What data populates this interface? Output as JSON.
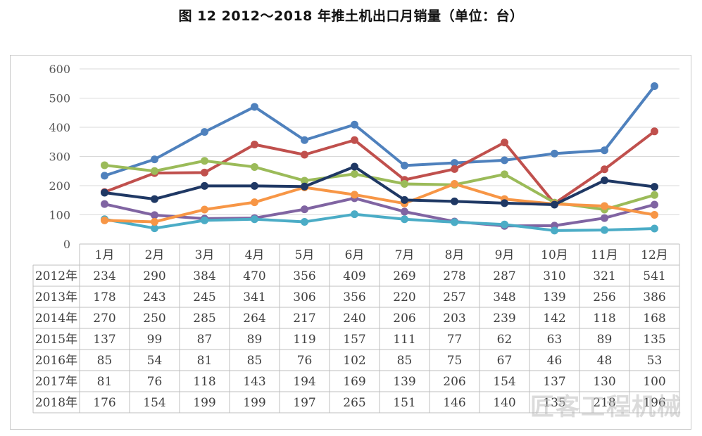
{
  "title": "图 12   2012～2018 年推土机出口月销量（单位：台）",
  "watermark": "匠客工程机械",
  "chart_data": {
    "type": "line",
    "title": "图 12   2012～2018 年推土机出口月销量（单位：台）",
    "categories": [
      "1月",
      "2月",
      "3月",
      "4月",
      "5月",
      "6月",
      "7月",
      "8月",
      "9月",
      "10月",
      "11月",
      "12月"
    ],
    "ylim": [
      0,
      600
    ],
    "yticks": [
      0,
      100,
      200,
      300,
      400,
      500,
      600
    ],
    "grid": true,
    "legend": "data table below chart",
    "series": [
      {
        "name": "2012年",
        "color": "#4F81BD",
        "values": [
          234,
          290,
          384,
          470,
          356,
          409,
          269,
          278,
          287,
          310,
          321,
          541
        ]
      },
      {
        "name": "2013年",
        "color": "#C0504D",
        "values": [
          178,
          243,
          245,
          341,
          306,
          356,
          220,
          257,
          348,
          139,
          256,
          386
        ]
      },
      {
        "name": "2014年",
        "color": "#9BBB59",
        "values": [
          270,
          250,
          285,
          264,
          217,
          240,
          206,
          203,
          239,
          142,
          118,
          168
        ]
      },
      {
        "name": "2015年",
        "color": "#8064A2",
        "values": [
          137,
          99,
          87,
          89,
          119,
          157,
          111,
          77,
          62,
          63,
          89,
          135
        ]
      },
      {
        "name": "2016年",
        "color": "#4BACC6",
        "values": [
          85,
          54,
          81,
          85,
          76,
          102,
          85,
          75,
          67,
          46,
          48,
          53
        ]
      },
      {
        "name": "2017年",
        "color": "#F79646",
        "values": [
          81,
          76,
          118,
          143,
          194,
          169,
          139,
          206,
          154,
          137,
          130,
          100
        ]
      },
      {
        "name": "2018年",
        "color": "#1F3864",
        "values": [
          176,
          154,
          199,
          199,
          197,
          265,
          151,
          146,
          140,
          135,
          218,
          196
        ]
      }
    ]
  }
}
